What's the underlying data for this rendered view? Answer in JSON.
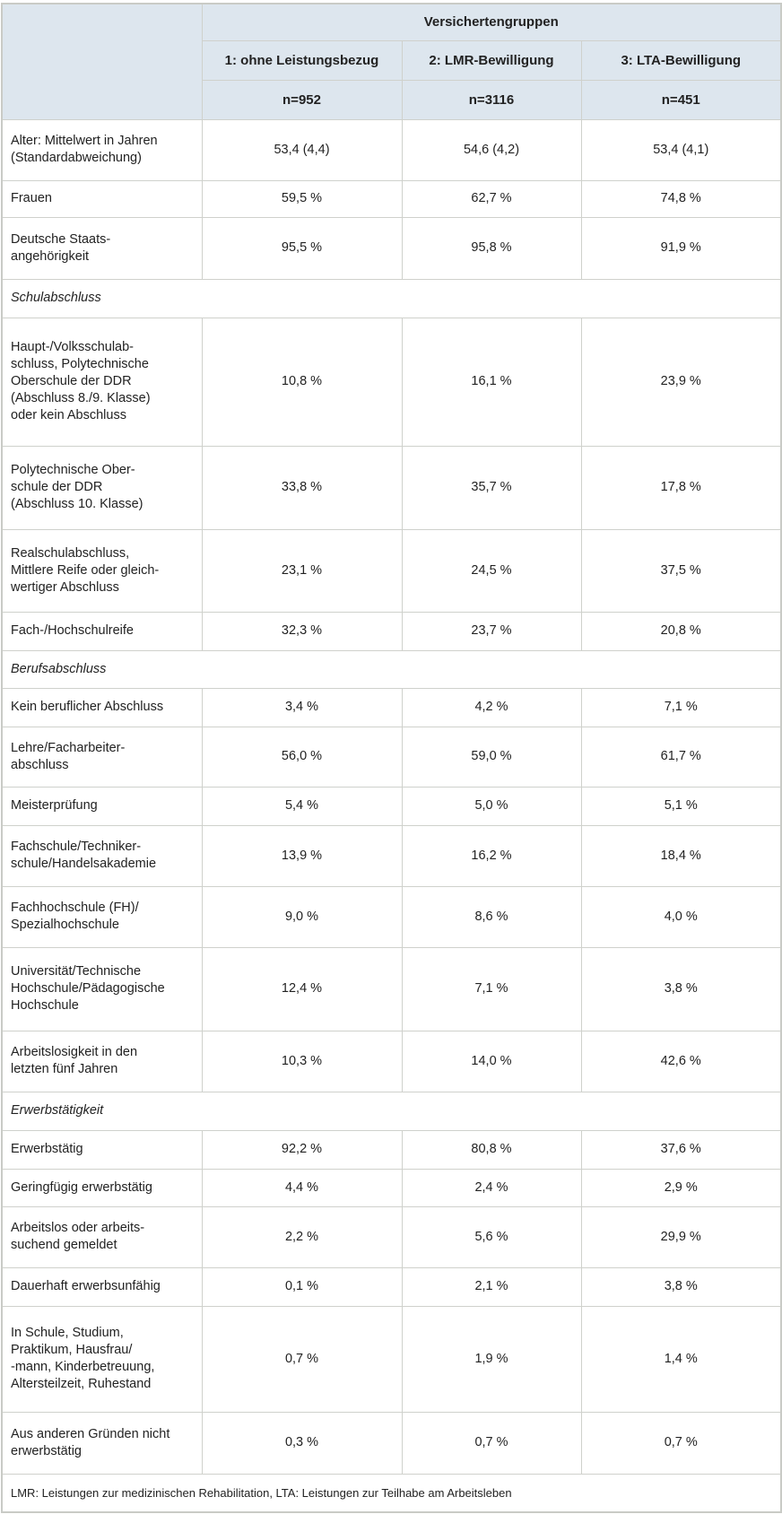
{
  "header": {
    "group_title": "Versichertengruppen",
    "columns": [
      "1: ohne Leistungsbezug",
      "2: LMR-Bewilligung",
      "3: LTA-Bewilligung"
    ],
    "n": [
      "n=952",
      "n=3116",
      "n=451"
    ]
  },
  "rows": [
    {
      "label": "Alter: Mittelwert in Jahren\n(Standardabweichung)",
      "values": [
        "53,4 (4,4)",
        "54,6 (4,2)",
        "53,4 (4,1)"
      ]
    },
    {
      "label": "Frauen",
      "values": [
        "59,5 %",
        "62,7 %",
        "74,8 %"
      ]
    },
    {
      "label": "Deutsche Staats-\nangehörigkeit",
      "values": [
        "95,5 %",
        "95,8 %",
        "91,9 %"
      ]
    },
    {
      "section": "Schulabschluss"
    },
    {
      "label": "Haupt-/Volksschulab-\nschluss, Polytechnische\nOberschule der DDR\n(Abschluss 8./9. Klasse)\noder kein Abschluss",
      "values": [
        "10,8 %",
        "16,1 %",
        "23,9 %"
      ]
    },
    {
      "label": "Polytechnische Ober-\nschule der DDR\n(Abschluss 10. Klasse)",
      "values": [
        "33,8 %",
        "35,7 %",
        "17,8 %"
      ]
    },
    {
      "label": "Realschulabschluss,\nMittlere Reife oder gleich-\nwertiger Abschluss",
      "values": [
        "23,1 %",
        "24,5 %",
        "37,5 %"
      ]
    },
    {
      "label": "Fach-/Hochschulreife",
      "values": [
        "32,3 %",
        "23,7 %",
        "20,8 %"
      ]
    },
    {
      "section": "Berufsabschluss"
    },
    {
      "label": "Kein beruflicher Abschluss",
      "values": [
        "3,4 %",
        "4,2 %",
        "7,1 %"
      ]
    },
    {
      "label": "Lehre/Facharbeiter-\nabschluss",
      "values": [
        "56,0 %",
        "59,0 %",
        "61,7 %"
      ]
    },
    {
      "label": "Meisterprüfung",
      "values": [
        "5,4 %",
        "5,0 %",
        "5,1 %"
      ]
    },
    {
      "label": "Fachschule/Techniker-\nschule/Handelsakademie",
      "values": [
        "13,9 %",
        "16,2 %",
        "18,4 %"
      ]
    },
    {
      "label": "Fachhochschule (FH)/\nSpezialhochschule",
      "values": [
        "9,0 %",
        "8,6 %",
        "4,0 %"
      ]
    },
    {
      "label": "Universität/Technische\nHochschule/Pädagogische\nHochschule",
      "values": [
        "12,4 %",
        "7,1 %",
        "3,8 %"
      ]
    },
    {
      "label": "Arbeitslosigkeit in den\nletzten fünf Jahren",
      "values": [
        "10,3 %",
        "14,0 %",
        "42,6 %"
      ]
    },
    {
      "section": "Erwerbstätigkeit"
    },
    {
      "label": "Erwerbstätig",
      "values": [
        "92,2 %",
        "80,8 %",
        "37,6 %"
      ]
    },
    {
      "label": "Geringfügig erwerbstätig",
      "values": [
        "4,4 %",
        "2,4 %",
        "2,9 %"
      ]
    },
    {
      "label": "Arbeitslos oder arbeits-\nsuchend gemeldet",
      "values": [
        "2,2 %",
        "5,6 %",
        "29,9 %"
      ]
    },
    {
      "label": "Dauerhaft erwerbsunfähig",
      "values": [
        "0,1 %",
        "2,1 %",
        "3,8 %"
      ]
    },
    {
      "label": "In Schule, Studium,\nPraktikum, Hausfrau/\n-mann, Kinderbetreuung,\nAltersteilzeit, Ruhestand",
      "values": [
        "0,7 %",
        "1,9 %",
        "1,4 %"
      ]
    },
    {
      "label": "Aus anderen Gründen nicht\nerwerbstätig",
      "values": [
        "0,3 %",
        "0,7 %",
        "0,7 %"
      ]
    }
  ],
  "footnote": "LMR: Leistungen zur medizinischen Rehabilitation, LTA: Leistungen zur Teilhabe am Arbeitsleben",
  "colors": {
    "header_bg": "#dde6ee",
    "border": "#cfd1cc"
  }
}
